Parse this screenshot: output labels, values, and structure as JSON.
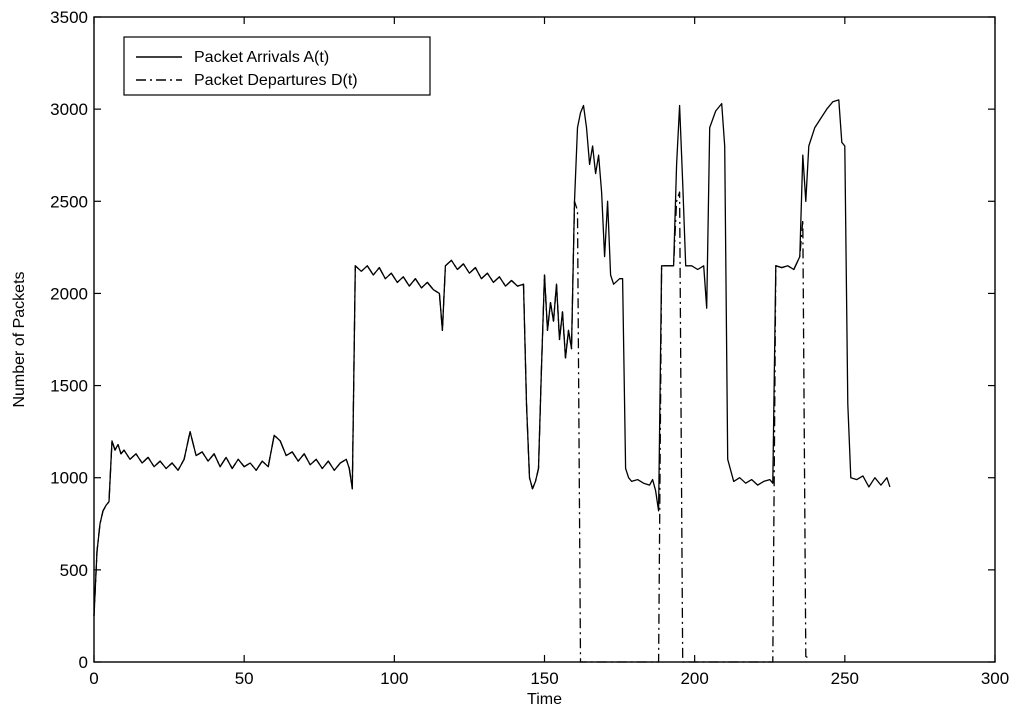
{
  "chart_data": {
    "type": "line",
    "title": "",
    "xlabel": "Time",
    "ylabel": "Number of Packets",
    "xlim": [
      0,
      300
    ],
    "ylim": [
      0,
      3500
    ],
    "xticks": [
      0,
      50,
      100,
      150,
      200,
      250,
      300
    ],
    "yticks": [
      0,
      500,
      1000,
      1500,
      2000,
      2500,
      3000,
      3500
    ],
    "grid": false,
    "legend": "top-left",
    "series": [
      {
        "name": "Packet Arrivals A(t)",
        "style": "solid",
        "color": "#000000",
        "points": [
          [
            0,
            250
          ],
          [
            1,
            600
          ],
          [
            2,
            750
          ],
          [
            3,
            820
          ],
          [
            4,
            850
          ],
          [
            5,
            870
          ],
          [
            6,
            1200
          ],
          [
            7,
            1150
          ],
          [
            8,
            1180
          ],
          [
            9,
            1130
          ],
          [
            10,
            1150
          ],
          [
            12,
            1100
          ],
          [
            14,
            1130
          ],
          [
            16,
            1080
          ],
          [
            18,
            1110
          ],
          [
            20,
            1060
          ],
          [
            22,
            1090
          ],
          [
            24,
            1050
          ],
          [
            26,
            1080
          ],
          [
            28,
            1040
          ],
          [
            30,
            1100
          ],
          [
            32,
            1250
          ],
          [
            34,
            1120
          ],
          [
            36,
            1140
          ],
          [
            38,
            1090
          ],
          [
            40,
            1130
          ],
          [
            42,
            1060
          ],
          [
            44,
            1110
          ],
          [
            46,
            1050
          ],
          [
            48,
            1100
          ],
          [
            50,
            1060
          ],
          [
            52,
            1080
          ],
          [
            54,
            1040
          ],
          [
            56,
            1090
          ],
          [
            58,
            1060
          ],
          [
            60,
            1230
          ],
          [
            62,
            1200
          ],
          [
            64,
            1120
          ],
          [
            66,
            1140
          ],
          [
            68,
            1090
          ],
          [
            70,
            1130
          ],
          [
            72,
            1070
          ],
          [
            74,
            1100
          ],
          [
            76,
            1050
          ],
          [
            78,
            1090
          ],
          [
            80,
            1040
          ],
          [
            82,
            1080
          ],
          [
            84,
            1100
          ],
          [
            85,
            1050
          ],
          [
            86,
            940
          ],
          [
            87,
            2150
          ],
          [
            89,
            2120
          ],
          [
            91,
            2150
          ],
          [
            93,
            2100
          ],
          [
            95,
            2140
          ],
          [
            97,
            2080
          ],
          [
            99,
            2110
          ],
          [
            101,
            2060
          ],
          [
            103,
            2090
          ],
          [
            105,
            2040
          ],
          [
            107,
            2080
          ],
          [
            109,
            2030
          ],
          [
            111,
            2060
          ],
          [
            113,
            2020
          ],
          [
            115,
            2000
          ],
          [
            116,
            1800
          ],
          [
            117,
            2150
          ],
          [
            119,
            2180
          ],
          [
            121,
            2130
          ],
          [
            123,
            2160
          ],
          [
            125,
            2110
          ],
          [
            127,
            2140
          ],
          [
            129,
            2080
          ],
          [
            131,
            2110
          ],
          [
            133,
            2060
          ],
          [
            135,
            2090
          ],
          [
            137,
            2040
          ],
          [
            139,
            2070
          ],
          [
            141,
            2040
          ],
          [
            143,
            2050
          ],
          [
            144,
            1400
          ],
          [
            145,
            1000
          ],
          [
            146,
            940
          ],
          [
            147,
            980
          ],
          [
            148,
            1050
          ],
          [
            149,
            1600
          ],
          [
            150,
            2100
          ],
          [
            151,
            1800
          ],
          [
            152,
            1950
          ],
          [
            153,
            1850
          ],
          [
            154,
            2050
          ],
          [
            155,
            1750
          ],
          [
            156,
            1900
          ],
          [
            157,
            1650
          ],
          [
            158,
            1800
          ],
          [
            159,
            1700
          ],
          [
            160,
            2500
          ],
          [
            161,
            2900
          ],
          [
            162,
            2980
          ],
          [
            163,
            3020
          ],
          [
            164,
            2900
          ],
          [
            165,
            2700
          ],
          [
            166,
            2800
          ],
          [
            167,
            2650
          ],
          [
            168,
            2750
          ],
          [
            169,
            2550
          ],
          [
            170,
            2200
          ],
          [
            171,
            2500
          ],
          [
            172,
            2100
          ],
          [
            173,
            2050
          ],
          [
            175,
            2080
          ],
          [
            176,
            2080
          ],
          [
            177,
            1050
          ],
          [
            178,
            1000
          ],
          [
            179,
            980
          ],
          [
            181,
            990
          ],
          [
            183,
            970
          ],
          [
            185,
            960
          ],
          [
            186,
            990
          ],
          [
            187,
            930
          ],
          [
            188,
            820
          ],
          [
            189,
            2150
          ],
          [
            191,
            2150
          ],
          [
            193,
            2150
          ],
          [
            194,
            2700
          ],
          [
            195,
            3020
          ],
          [
            196,
            2600
          ],
          [
            197,
            2150
          ],
          [
            199,
            2150
          ],
          [
            201,
            2130
          ],
          [
            203,
            2150
          ],
          [
            204,
            1920
          ],
          [
            205,
            2900
          ],
          [
            207,
            2990
          ],
          [
            209,
            3030
          ],
          [
            210,
            2800
          ],
          [
            211,
            1100
          ],
          [
            213,
            980
          ],
          [
            215,
            1000
          ],
          [
            217,
            970
          ],
          [
            219,
            990
          ],
          [
            221,
            960
          ],
          [
            223,
            980
          ],
          [
            225,
            990
          ],
          [
            226,
            970
          ],
          [
            227,
            2150
          ],
          [
            229,
            2140
          ],
          [
            231,
            2150
          ],
          [
            233,
            2130
          ],
          [
            235,
            2200
          ],
          [
            236,
            2750
          ],
          [
            237,
            2500
          ],
          [
            238,
            2800
          ],
          [
            240,
            2900
          ],
          [
            242,
            2950
          ],
          [
            244,
            3000
          ],
          [
            246,
            3040
          ],
          [
            248,
            3050
          ],
          [
            249,
            2820
          ],
          [
            250,
            2800
          ],
          [
            251,
            1400
          ],
          [
            252,
            1000
          ],
          [
            254,
            990
          ],
          [
            256,
            1010
          ],
          [
            258,
            950
          ],
          [
            260,
            1000
          ],
          [
            262,
            960
          ],
          [
            264,
            1000
          ],
          [
            265,
            950
          ]
        ]
      },
      {
        "name": "Packet Departures D(t)",
        "style": "dash-dot",
        "color": "#000000",
        "points": [
          [
            0,
            250
          ],
          [
            1,
            600
          ],
          [
            2,
            750
          ],
          [
            3,
            820
          ],
          [
            4,
            850
          ],
          [
            5,
            870
          ],
          [
            6,
            1200
          ],
          [
            7,
            1150
          ],
          [
            8,
            1180
          ],
          [
            9,
            1130
          ],
          [
            10,
            1150
          ],
          [
            12,
            1100
          ],
          [
            14,
            1130
          ],
          [
            16,
            1080
          ],
          [
            18,
            1110
          ],
          [
            20,
            1060
          ],
          [
            22,
            1090
          ],
          [
            24,
            1050
          ],
          [
            26,
            1080
          ],
          [
            28,
            1040
          ],
          [
            30,
            1100
          ],
          [
            32,
            1250
          ],
          [
            34,
            1120
          ],
          [
            36,
            1140
          ],
          [
            38,
            1090
          ],
          [
            40,
            1130
          ],
          [
            42,
            1060
          ],
          [
            44,
            1110
          ],
          [
            46,
            1050
          ],
          [
            48,
            1100
          ],
          [
            50,
            1060
          ],
          [
            52,
            1080
          ],
          [
            54,
            1040
          ],
          [
            56,
            1090
          ],
          [
            58,
            1060
          ],
          [
            60,
            1230
          ],
          [
            62,
            1200
          ],
          [
            64,
            1120
          ],
          [
            66,
            1140
          ],
          [
            68,
            1090
          ],
          [
            70,
            1130
          ],
          [
            72,
            1070
          ],
          [
            74,
            1100
          ],
          [
            76,
            1050
          ],
          [
            78,
            1090
          ],
          [
            80,
            1040
          ],
          [
            82,
            1080
          ],
          [
            84,
            1100
          ],
          [
            85,
            1050
          ],
          [
            86,
            940
          ],
          [
            87,
            2150
          ],
          [
            89,
            2120
          ],
          [
            91,
            2150
          ],
          [
            93,
            2100
          ],
          [
            95,
            2140
          ],
          [
            97,
            2080
          ],
          [
            99,
            2110
          ],
          [
            101,
            2060
          ],
          [
            103,
            2090
          ],
          [
            105,
            2040
          ],
          [
            107,
            2080
          ],
          [
            109,
            2030
          ],
          [
            111,
            2060
          ],
          [
            113,
            2020
          ],
          [
            115,
            2000
          ],
          [
            116,
            1800
          ],
          [
            117,
            2150
          ],
          [
            119,
            2180
          ],
          [
            121,
            2130
          ],
          [
            123,
            2160
          ],
          [
            125,
            2110
          ],
          [
            127,
            2140
          ],
          [
            129,
            2080
          ],
          [
            131,
            2110
          ],
          [
            133,
            2060
          ],
          [
            135,
            2090
          ],
          [
            137,
            2040
          ],
          [
            139,
            2070
          ],
          [
            141,
            2040
          ],
          [
            143,
            2050
          ],
          [
            144,
            1400
          ],
          [
            145,
            1000
          ],
          [
            146,
            940
          ],
          [
            147,
            980
          ],
          [
            148,
            1050
          ],
          [
            149,
            1600
          ],
          [
            150,
            2100
          ],
          [
            151,
            1800
          ],
          [
            152,
            1950
          ],
          [
            153,
            1850
          ],
          [
            154,
            2050
          ],
          [
            155,
            1750
          ],
          [
            156,
            1900
          ],
          [
            157,
            1650
          ],
          [
            158,
            1800
          ],
          [
            159,
            1700
          ],
          [
            160,
            2500
          ],
          [
            161,
            2450
          ],
          [
            162,
            0
          ],
          [
            188,
            0
          ],
          [
            189,
            2150
          ],
          [
            191,
            2150
          ],
          [
            193,
            2150
          ],
          [
            194,
            2500
          ],
          [
            195,
            2550
          ],
          [
            196,
            0
          ],
          [
            226,
            0
          ],
          [
            227,
            2150
          ],
          [
            229,
            2140
          ],
          [
            231,
            2150
          ],
          [
            233,
            2130
          ],
          [
            235,
            2200
          ],
          [
            236,
            2400
          ],
          [
            237,
            30
          ],
          [
            238,
            20
          ]
        ]
      }
    ]
  }
}
